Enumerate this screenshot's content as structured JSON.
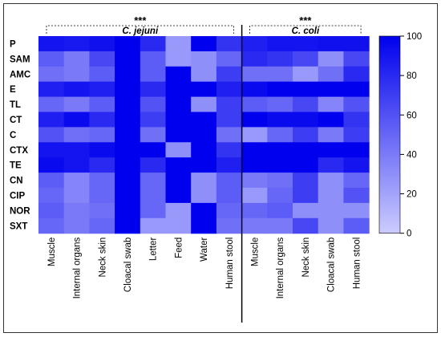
{
  "chart_data": {
    "type": "heatmap",
    "title": "",
    "xlabel": "",
    "ylabel": "",
    "rows": [
      "P",
      "SAM",
      "AMC",
      "E",
      "TL",
      "CT",
      "C",
      "CTX",
      "TE",
      "CN",
      "CIP",
      "NOR",
      "SXT"
    ],
    "groups": [
      {
        "name": "C. jejuni",
        "significance": "***",
        "columns": [
          "Muscle",
          "Internal organs",
          "Neck skin",
          "Cloacal swab",
          "Letter",
          "Feed",
          "Water",
          "Human stool"
        ]
      },
      {
        "name": "C. coli",
        "significance": "***",
        "columns": [
          "Muscle",
          "Internal organs",
          "Neck skin",
          "Cloacal swab",
          "Human stool"
        ]
      }
    ],
    "columns": [
      "Muscle",
      "Internal organs",
      "Neck skin",
      "Cloacal swab",
      "Letter",
      "Feed",
      "Water",
      "Human stool",
      "Muscle",
      "Internal organs",
      "Neck skin",
      "Cloacal swab",
      "Human stool"
    ],
    "values": [
      [
        90,
        88,
        92,
        100,
        80,
        25,
        100,
        75,
        85,
        90,
        90,
        92,
        92
      ],
      [
        55,
        40,
        65,
        100,
        55,
        25,
        30,
        50,
        80,
        75,
        65,
        30,
        65
      ],
      [
        45,
        40,
        55,
        100,
        55,
        100,
        30,
        70,
        45,
        45,
        25,
        45,
        80
      ],
      [
        85,
        90,
        85,
        100,
        80,
        100,
        100,
        85,
        95,
        100,
        100,
        100,
        100
      ],
      [
        50,
        40,
        55,
        100,
        60,
        100,
        30,
        70,
        55,
        50,
        65,
        35,
        60
      ],
      [
        85,
        95,
        80,
        100,
        70,
        100,
        100,
        70,
        100,
        95,
        95,
        100,
        75
      ],
      [
        60,
        45,
        50,
        100,
        45,
        100,
        100,
        45,
        25,
        50,
        70,
        40,
        70
      ],
      [
        90,
        90,
        95,
        100,
        100,
        30,
        100,
        75,
        100,
        100,
        100,
        100,
        100
      ],
      [
        95,
        90,
        80,
        100,
        80,
        100,
        100,
        85,
        100,
        100,
        100,
        80,
        90
      ],
      [
        55,
        35,
        50,
        100,
        50,
        100,
        30,
        55,
        40,
        45,
        70,
        30,
        50
      ],
      [
        50,
        35,
        50,
        100,
        50,
        100,
        30,
        55,
        25,
        50,
        70,
        30,
        60
      ],
      [
        55,
        40,
        45,
        100,
        50,
        25,
        100,
        50,
        50,
        55,
        30,
        30,
        30
      ],
      [
        50,
        40,
        50,
        100,
        25,
        25,
        100,
        45,
        40,
        40,
        65,
        30,
        55
      ]
    ],
    "colorbar": {
      "min": 0,
      "max": 100,
      "ticks": [
        0,
        20,
        40,
        60,
        80,
        100
      ],
      "low_color": "#ccccff",
      "high_color": "#0000ee"
    },
    "grid": false,
    "legend": "colorbar-right"
  }
}
